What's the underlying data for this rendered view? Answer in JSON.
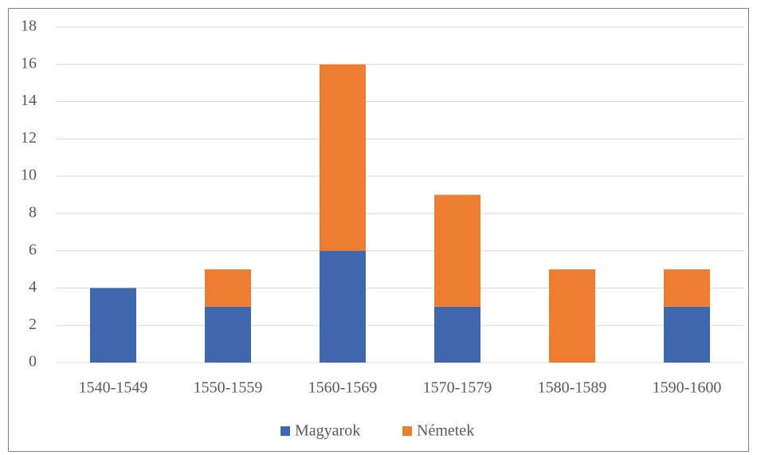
{
  "chart_data": {
    "type": "stacked_bar",
    "categories": [
      "1540-1549",
      "1550-1559",
      "1560-1569",
      "1570-1579",
      "1580-1589",
      "1590-1600"
    ],
    "series": [
      {
        "name": "Magyarok",
        "color": "#4068ae",
        "values": [
          4,
          3,
          6,
          3,
          0,
          3
        ]
      },
      {
        "name": "Németek",
        "color": "#ed7d31",
        "values": [
          0,
          2,
          10,
          6,
          5,
          2
        ]
      }
    ],
    "ylim": [
      0,
      18
    ],
    "yticks": [
      0,
      2,
      4,
      6,
      8,
      10,
      12,
      14,
      16,
      18
    ],
    "grid": true,
    "legend": "bottom"
  }
}
